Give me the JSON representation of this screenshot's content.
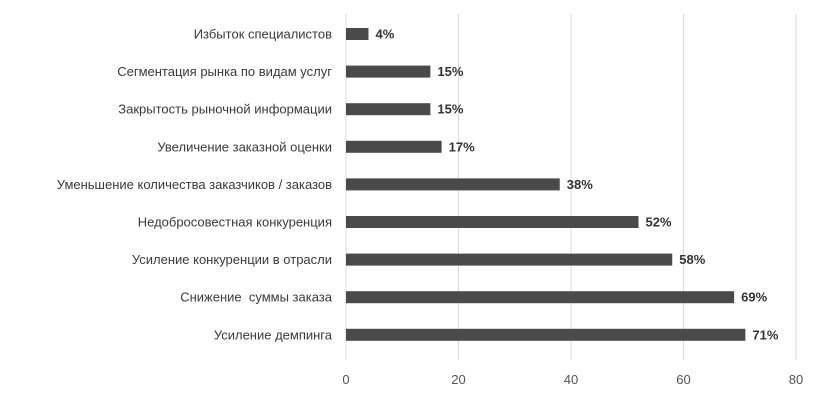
{
  "chart_data": {
    "type": "bar",
    "orientation": "horizontal",
    "categories": [
      "Избыток специалистов",
      "Сегментация рынка по видам услуг",
      "Закрытость рыночной информации",
      "Увеличение заказной оценки",
      "Уменьшение количества заказчиков / заказов",
      "Недобросовестная конкуренция",
      "Усиление конкуренции в отрасли",
      "Снижение  суммы заказа",
      "Усиление демпинга"
    ],
    "values": [
      4,
      15,
      15,
      17,
      38,
      52,
      58,
      69,
      71
    ],
    "data_labels": [
      "4%",
      "15%",
      "15%",
      "17%",
      "38%",
      "52%",
      "58%",
      "69%",
      "71%"
    ],
    "xlim": [
      0,
      80
    ],
    "xticks": [
      0,
      20,
      40,
      60,
      80
    ],
    "xtick_labels": [
      "0",
      "20",
      "40",
      "60",
      "80"
    ],
    "grid": "vertical",
    "legend": "none",
    "colors": {
      "bar": "#4a4a4a",
      "grid": "#d9d9d9"
    }
  }
}
